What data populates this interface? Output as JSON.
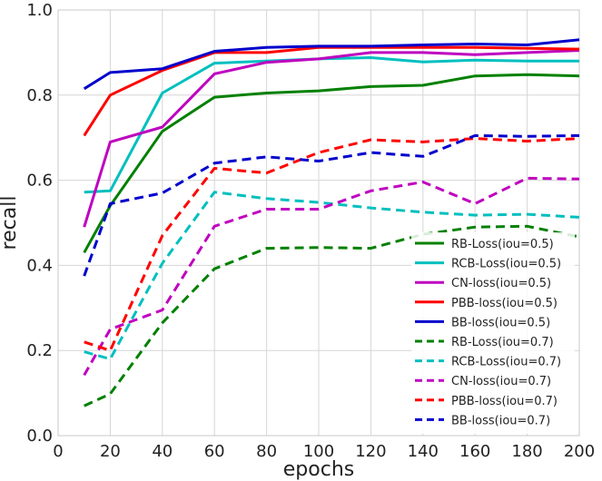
{
  "chart_data": {
    "type": "line",
    "title": "",
    "xlabel": "epochs",
    "ylabel": "recall",
    "xlim": [
      0,
      200
    ],
    "ylim": [
      0.0,
      1.0
    ],
    "xticks": [
      0,
      20,
      40,
      60,
      80,
      100,
      120,
      140,
      160,
      180,
      200
    ],
    "yticks": [
      0.0,
      0.2,
      0.4,
      0.6,
      0.8,
      1.0
    ],
    "xtick_labels": [
      "0",
      "20",
      "40",
      "60",
      "80",
      "100",
      "120",
      "140",
      "160",
      "180",
      "200"
    ],
    "ytick_labels": [
      "0.0",
      "0.2",
      "0.4",
      "0.6",
      "0.8",
      "1.0"
    ],
    "grid": true,
    "legend_position": "lower-right",
    "x": [
      10,
      20,
      40,
      60,
      80,
      100,
      120,
      140,
      160,
      180,
      200
    ],
    "series": [
      {
        "name": "RB-Loss(iou=0.5)",
        "color": "#008000",
        "style": "solid",
        "values": [
          0.43,
          0.54,
          0.715,
          0.795,
          0.805,
          0.81,
          0.82,
          0.823,
          0.845,
          0.848,
          0.845
        ]
      },
      {
        "name": "RCB-Loss(iou=0.5)",
        "color": "#00bfbf",
        "style": "solid",
        "values": [
          0.572,
          0.575,
          0.805,
          0.875,
          0.88,
          0.885,
          0.888,
          0.878,
          0.882,
          0.88,
          0.88
        ]
      },
      {
        "name": "CN-loss(iou=0.5)",
        "color": "#bf00bf",
        "style": "solid",
        "values": [
          0.49,
          0.69,
          0.725,
          0.85,
          0.877,
          0.885,
          0.9,
          0.9,
          0.895,
          0.9,
          0.905
        ]
      },
      {
        "name": "PBB-loss(iou=0.5)",
        "color": "#ff0000",
        "style": "solid",
        "values": [
          0.705,
          0.8,
          0.858,
          0.9,
          0.9,
          0.912,
          0.912,
          0.912,
          0.912,
          0.91,
          0.908
        ]
      },
      {
        "name": "BB-loss(iou=0.5)",
        "color": "#0000cc",
        "style": "solid",
        "values": [
          0.815,
          0.853,
          0.862,
          0.903,
          0.912,
          0.915,
          0.915,
          0.918,
          0.92,
          0.918,
          0.93
        ]
      },
      {
        "name": "RB-Loss(iou=0.7)",
        "color": "#008000",
        "style": "dashed",
        "values": [
          0.07,
          0.098,
          0.265,
          0.392,
          0.44,
          0.442,
          0.44,
          0.473,
          0.49,
          0.492,
          0.467
        ]
      },
      {
        "name": "RCB-Loss(iou=0.7)",
        "color": "#00bfbf",
        "style": "dashed",
        "values": [
          0.197,
          0.18,
          0.405,
          0.572,
          0.557,
          0.548,
          0.535,
          0.525,
          0.518,
          0.52,
          0.513
        ]
      },
      {
        "name": "CN-loss(iou=0.7)",
        "color": "#bf00bf",
        "style": "dashed",
        "values": [
          0.142,
          0.25,
          0.295,
          0.492,
          0.532,
          0.532,
          0.575,
          0.596,
          0.545,
          0.605,
          0.603
        ]
      },
      {
        "name": "PBB-loss(iou=0.7)",
        "color": "#ff0000",
        "style": "dashed",
        "values": [
          0.22,
          0.2,
          0.47,
          0.628,
          0.617,
          0.665,
          0.695,
          0.69,
          0.698,
          0.692,
          0.698
        ]
      },
      {
        "name": "BB-loss(iou=0.7)",
        "color": "#0000cc",
        "style": "dashed",
        "values": [
          0.375,
          0.545,
          0.57,
          0.64,
          0.655,
          0.645,
          0.665,
          0.656,
          0.705,
          0.703,
          0.705
        ]
      }
    ]
  }
}
